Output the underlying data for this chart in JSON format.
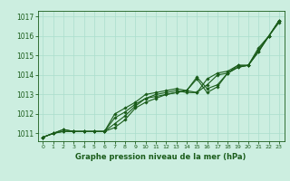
{
  "title": "Graphe pression niveau de la mer (hPa)",
  "background_color": "#cceee0",
  "grid_color": "#aaddcc",
  "line_color": "#1a5c1a",
  "text_color": "#1a5c1a",
  "xlim": [
    -0.5,
    23.5
  ],
  "ylim": [
    1010.6,
    1017.3
  ],
  "xticks": [
    0,
    1,
    2,
    3,
    4,
    5,
    6,
    7,
    8,
    9,
    10,
    11,
    12,
    13,
    14,
    15,
    16,
    17,
    18,
    19,
    20,
    21,
    22,
    23
  ],
  "yticks": [
    1011,
    1012,
    1013,
    1014,
    1015,
    1016,
    1017
  ],
  "series": [
    [
      1010.8,
      1011.0,
      1011.1,
      1011.1,
      1011.1,
      1011.1,
      1011.1,
      1011.5,
      1011.9,
      1012.4,
      1012.8,
      1012.9,
      1013.0,
      1013.1,
      1013.2,
      1013.8,
      1013.1,
      1013.4,
      1014.1,
      1014.4,
      1014.5,
      1015.2,
      1016.0,
      1016.8
    ],
    [
      1010.8,
      1011.0,
      1011.2,
      1011.1,
      1011.1,
      1011.1,
      1011.1,
      1011.8,
      1012.1,
      1012.5,
      1012.8,
      1013.0,
      1013.1,
      1013.2,
      1013.1,
      1013.1,
      1013.5,
      1014.0,
      1014.1,
      1014.4,
      1014.5,
      1015.3,
      1016.0,
      1016.7
    ],
    [
      1010.8,
      1011.0,
      1011.2,
      1011.1,
      1011.1,
      1011.1,
      1011.1,
      1012.0,
      1012.3,
      1012.6,
      1013.0,
      1013.1,
      1013.2,
      1013.3,
      1013.2,
      1013.1,
      1013.8,
      1014.1,
      1014.2,
      1014.5,
      1014.5,
      1015.4,
      1016.0,
      1016.8
    ],
    [
      1010.8,
      1011.0,
      1011.1,
      1011.1,
      1011.1,
      1011.1,
      1011.1,
      1011.3,
      1011.7,
      1012.3,
      1012.6,
      1012.8,
      1013.0,
      1013.1,
      1013.2,
      1013.9,
      1013.3,
      1013.5,
      1014.1,
      1014.5,
      1014.5,
      1015.2,
      1016.0,
      1016.8
    ]
  ],
  "figsize": [
    3.2,
    2.0
  ],
  "dpi": 100
}
